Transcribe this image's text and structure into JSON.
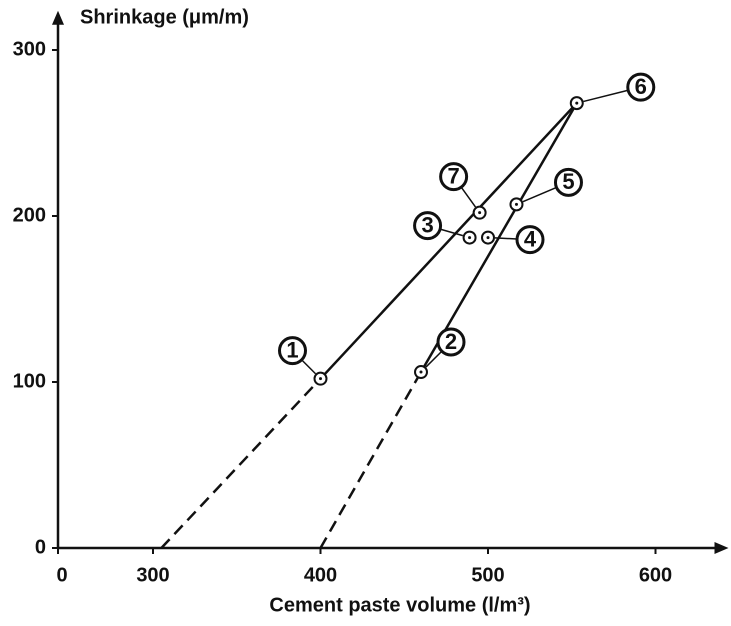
{
  "chart_data": {
    "type": "scatter",
    "y_label": "Shrinkage (μm/m)",
    "x_label": "Cement paste volume (l/m³)",
    "xlim": [
      0,
      640
    ],
    "ylim": [
      0,
      320
    ],
    "xticks": [
      0,
      300,
      400,
      500,
      600
    ],
    "yticks": [
      0,
      100,
      200,
      300
    ],
    "color": "#111111",
    "points": {
      "labels": [
        "1",
        "2",
        "3",
        "4",
        "5",
        "6",
        "7"
      ],
      "x": [
        400,
        460,
        489,
        500,
        517,
        553,
        495
      ],
      "y": [
        102,
        106,
        187,
        187,
        207,
        268,
        202
      ]
    },
    "lines": [
      {
        "x": [
          305,
          400,
          553
        ],
        "y": [
          0,
          102,
          268
        ]
      },
      {
        "x": [
          400,
          460,
          553
        ],
        "y": [
          0,
          106,
          268
        ]
      }
    ]
  }
}
